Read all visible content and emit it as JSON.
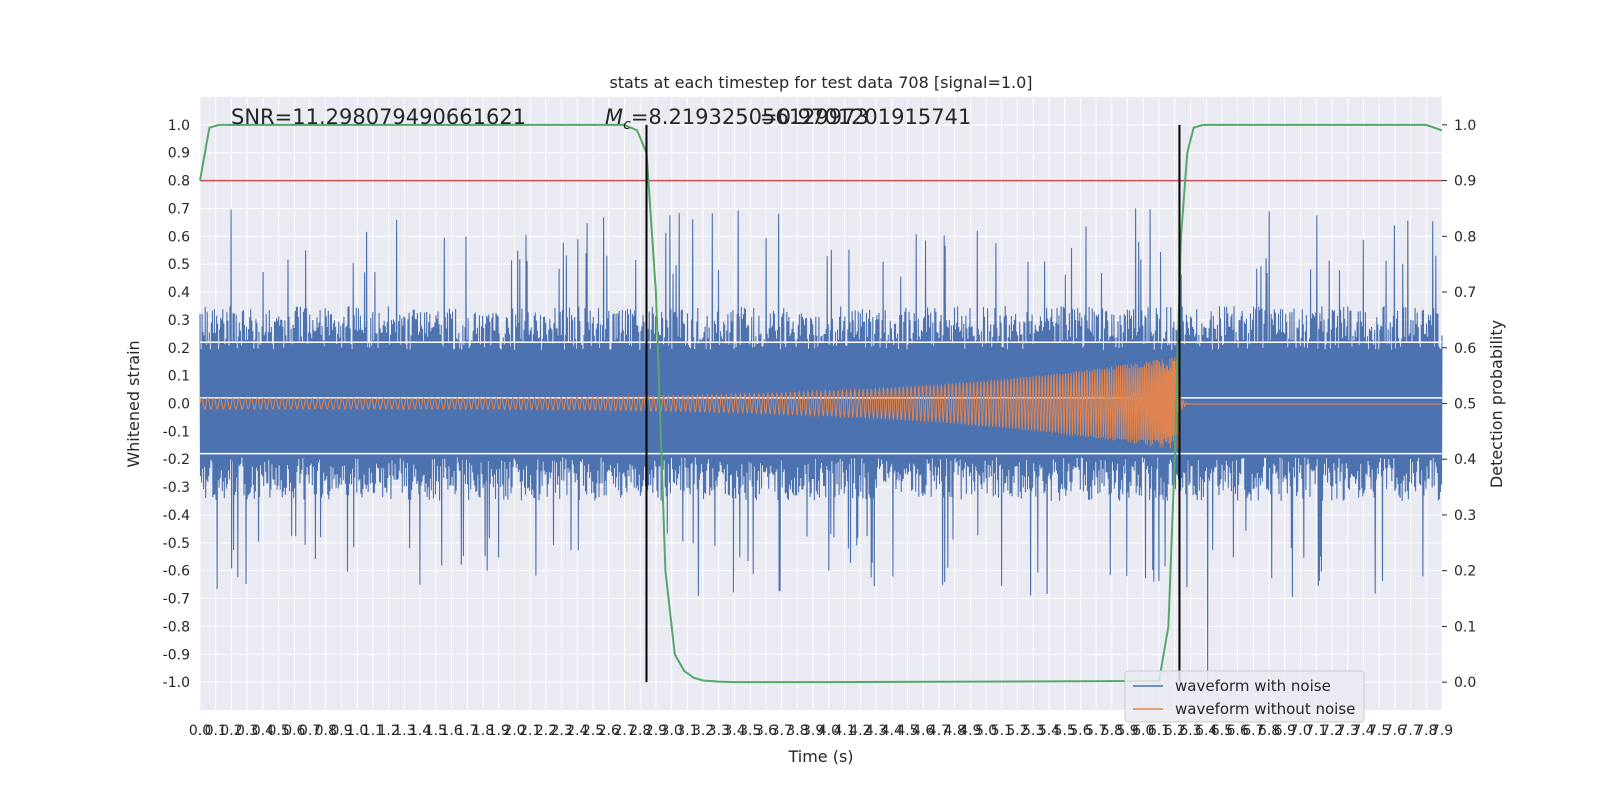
{
  "chart_data": {
    "type": "line",
    "title": "stats at each timestep for test data 708 [signal=1.0]",
    "xlabel": "Time (s)",
    "ylabel": "Whitened strain",
    "ylabel_right": "Detection probability",
    "xlim": [
      0.0,
      7.9
    ],
    "ylim": [
      -1.1,
      1.1
    ],
    "ylim_right": [
      -0.05,
      1.05
    ],
    "x_tick_step": 0.1,
    "y_ticks": [
      -1.0,
      -0.9,
      -0.8,
      -0.7,
      -0.6,
      -0.5,
      -0.4,
      -0.3,
      -0.2,
      -0.1,
      0.0,
      0.1,
      0.2,
      0.3,
      0.4,
      0.5,
      0.6,
      0.7,
      0.8,
      0.9,
      1.0
    ],
    "y_ticks_right": [
      0.0,
      0.1,
      0.2,
      0.3,
      0.4,
      0.5,
      0.6,
      0.7,
      0.8,
      0.9,
      1.0
    ],
    "grid": true,
    "background": "#eaeaf2",
    "annotations": {
      "snr": "SNR=11.298079490661621",
      "mc_symbol": "M",
      "mc_sub": "c",
      "mc_value": "=8.219325056129973",
      "overlap": "=0.9701201915741"
    },
    "legend": {
      "position": "lower-right",
      "entries": [
        "waveform with noise",
        "waveform without noise"
      ]
    },
    "series": [
      {
        "name": "waveform with noise",
        "color": "#4c72b0",
        "axis": "left",
        "kind": "noise",
        "amplitude_typical": 0.35,
        "peak": 1.0
      },
      {
        "name": "waveform without noise",
        "color": "#dd8452",
        "axis": "left",
        "kind": "chirp",
        "merger_time": 6.23,
        "amplitude_start": 0.02,
        "amplitude_end": 0.17
      },
      {
        "color": "#55a868",
        "axis": "right",
        "kind": "probability",
        "x": [
          0.0,
          0.06,
          0.12,
          0.2,
          2.7,
          2.78,
          2.84,
          2.9,
          2.96,
          3.02,
          3.08,
          3.14,
          3.2,
          3.3,
          3.4,
          4.0,
          6.1,
          6.16,
          6.2,
          6.24,
          6.28,
          6.32,
          6.38,
          6.45,
          7.8,
          7.9
        ],
        "y": [
          0.9,
          0.995,
          1.0,
          1.0,
          1.0,
          0.99,
          0.95,
          0.7,
          0.2,
          0.05,
          0.02,
          0.008,
          0.003,
          0.001,
          0.0,
          0.0,
          0.002,
          0.1,
          0.4,
          0.8,
          0.95,
          0.995,
          1.0,
          1.0,
          1.0,
          0.99
        ]
      }
    ],
    "threshold": {
      "value": 0.9,
      "axis": "right",
      "color": "#c44e52"
    },
    "white_hlines": [
      0.22,
      0.02,
      -0.18
    ],
    "vlines": [
      2.84,
      6.23
    ]
  }
}
